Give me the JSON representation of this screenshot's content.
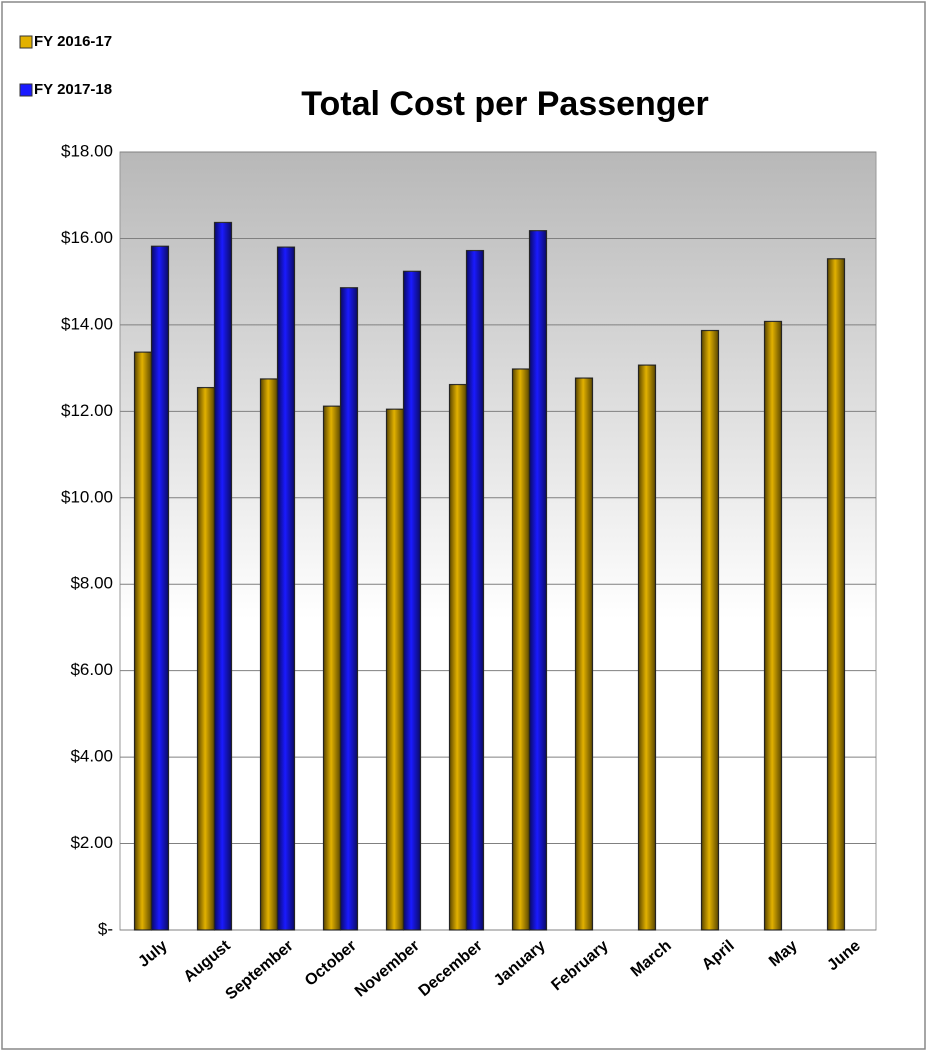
{
  "chart_data": {
    "type": "bar",
    "title": "Total Cost per Passenger",
    "categories": [
      "July",
      "August",
      "September",
      "October",
      "November",
      "December",
      "January",
      "February",
      "March",
      "April",
      "May",
      "June"
    ],
    "series": [
      {
        "name": "FY 2016-17",
        "color": "#e2b100",
        "values": [
          13.37,
          12.55,
          12.75,
          12.12,
          12.05,
          12.62,
          12.98,
          12.77,
          13.07,
          13.87,
          14.08,
          15.53
        ]
      },
      {
        "name": "FY 2017-18",
        "color": "#1a1aff",
        "values": [
          15.82,
          16.37,
          15.8,
          14.86,
          15.24,
          15.72,
          16.18,
          null,
          null,
          null,
          null,
          null
        ]
      }
    ],
    "ylim": [
      0,
      18
    ],
    "yticks": [
      {
        "value": 0,
        "label": "$-"
      },
      {
        "value": 2,
        "label": "$2.00"
      },
      {
        "value": 4,
        "label": "$4.00"
      },
      {
        "value": 6,
        "label": "$6.00"
      },
      {
        "value": 8,
        "label": "$8.00"
      },
      {
        "value": 10,
        "label": "$10.00"
      },
      {
        "value": 12,
        "label": "$12.00"
      },
      {
        "value": 14,
        "label": "$14.00"
      },
      {
        "value": 16,
        "label": "$16.00"
      },
      {
        "value": 18,
        "label": "$18.00"
      }
    ],
    "grid": true,
    "legend": "top-left"
  }
}
